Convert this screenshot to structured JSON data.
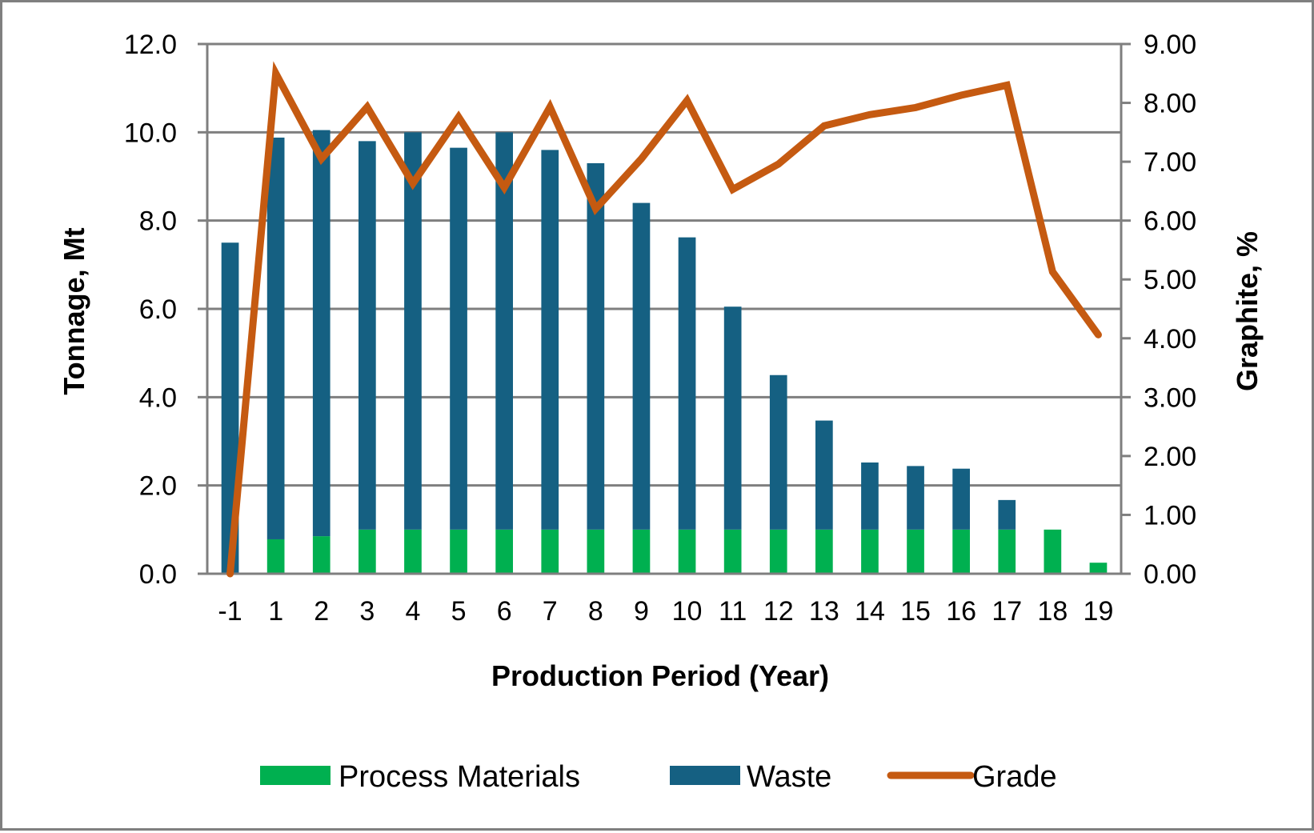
{
  "chart_data": {
    "type": "bar",
    "stacked": true,
    "categories": [
      "-1",
      "1",
      "2",
      "3",
      "4",
      "5",
      "6",
      "7",
      "8",
      "9",
      "10",
      "11",
      "12",
      "13",
      "14",
      "15",
      "16",
      "17",
      "18",
      "19"
    ],
    "series": [
      {
        "name": "Process Materials",
        "type": "bar",
        "axis": "left",
        "color": "#00b050",
        "values": [
          0,
          0.78,
          0.85,
          1.0,
          1.0,
          1.0,
          1.0,
          1.0,
          1.0,
          1.0,
          1.0,
          1.0,
          1.0,
          1.0,
          1.0,
          1.0,
          1.0,
          1.0,
          1.0,
          0.25
        ]
      },
      {
        "name": "Waste",
        "type": "bar",
        "axis": "left",
        "color": "#156082",
        "values": [
          7.5,
          9.1,
          9.2,
          8.8,
          9.0,
          8.65,
          9.0,
          8.6,
          8.3,
          7.4,
          6.62,
          5.05,
          3.5,
          2.47,
          1.52,
          1.44,
          1.38,
          0.67,
          0,
          0
        ]
      },
      {
        "name": "Grade",
        "type": "line",
        "axis": "right",
        "color": "#c55a11",
        "values": [
          0.0,
          8.5,
          7.05,
          7.93,
          6.63,
          7.76,
          6.56,
          7.93,
          6.2,
          7.05,
          8.04,
          6.53,
          6.96,
          7.61,
          7.8,
          7.92,
          8.13,
          8.3,
          5.13,
          4.06
        ]
      }
    ],
    "xlabel": "Production Period (Year)",
    "ylabel": "Tonnage, Mt",
    "y2label": "Graphite, %",
    "ylim": [
      0,
      12
    ],
    "y2lim": [
      0,
      9
    ],
    "yticks": [
      "0.0",
      "2.0",
      "4.0",
      "6.0",
      "8.0",
      "10.0",
      "12.0"
    ],
    "y2ticks": [
      "0.00",
      "1.00",
      "2.00",
      "3.00",
      "4.00",
      "5.00",
      "6.00",
      "7.00",
      "8.00",
      "9.00"
    ],
    "grid": true,
    "legend_position": "bottom",
    "gridline_color": "#7f7f7f"
  }
}
